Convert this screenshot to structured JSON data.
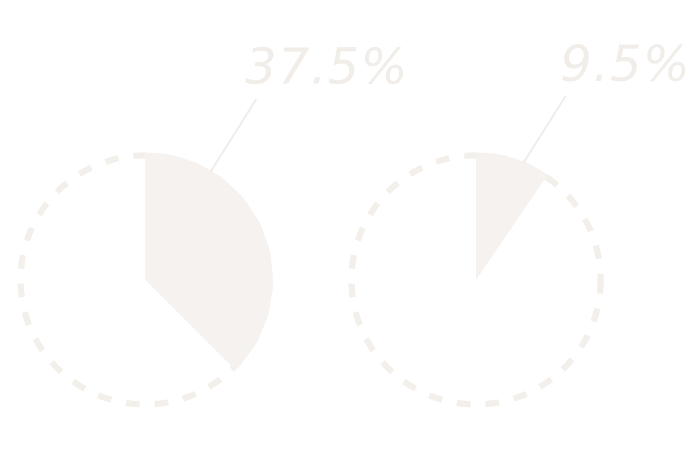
{
  "chart_data": [
    {
      "type": "pie",
      "title": "",
      "slices": [
        {
          "label": "37.5%",
          "value": 37.5
        }
      ],
      "total": 100
    },
    {
      "type": "pie",
      "title": "",
      "slices": [
        {
          "label": "9.5%",
          "value": 9.5
        }
      ],
      "total": 100
    }
  ],
  "colors": {
    "slice_fill": "#f5f2ef",
    "ring_stroke": "#f3efea",
    "label_text": "#f1ede8",
    "leader_line": "#f1ede8"
  }
}
